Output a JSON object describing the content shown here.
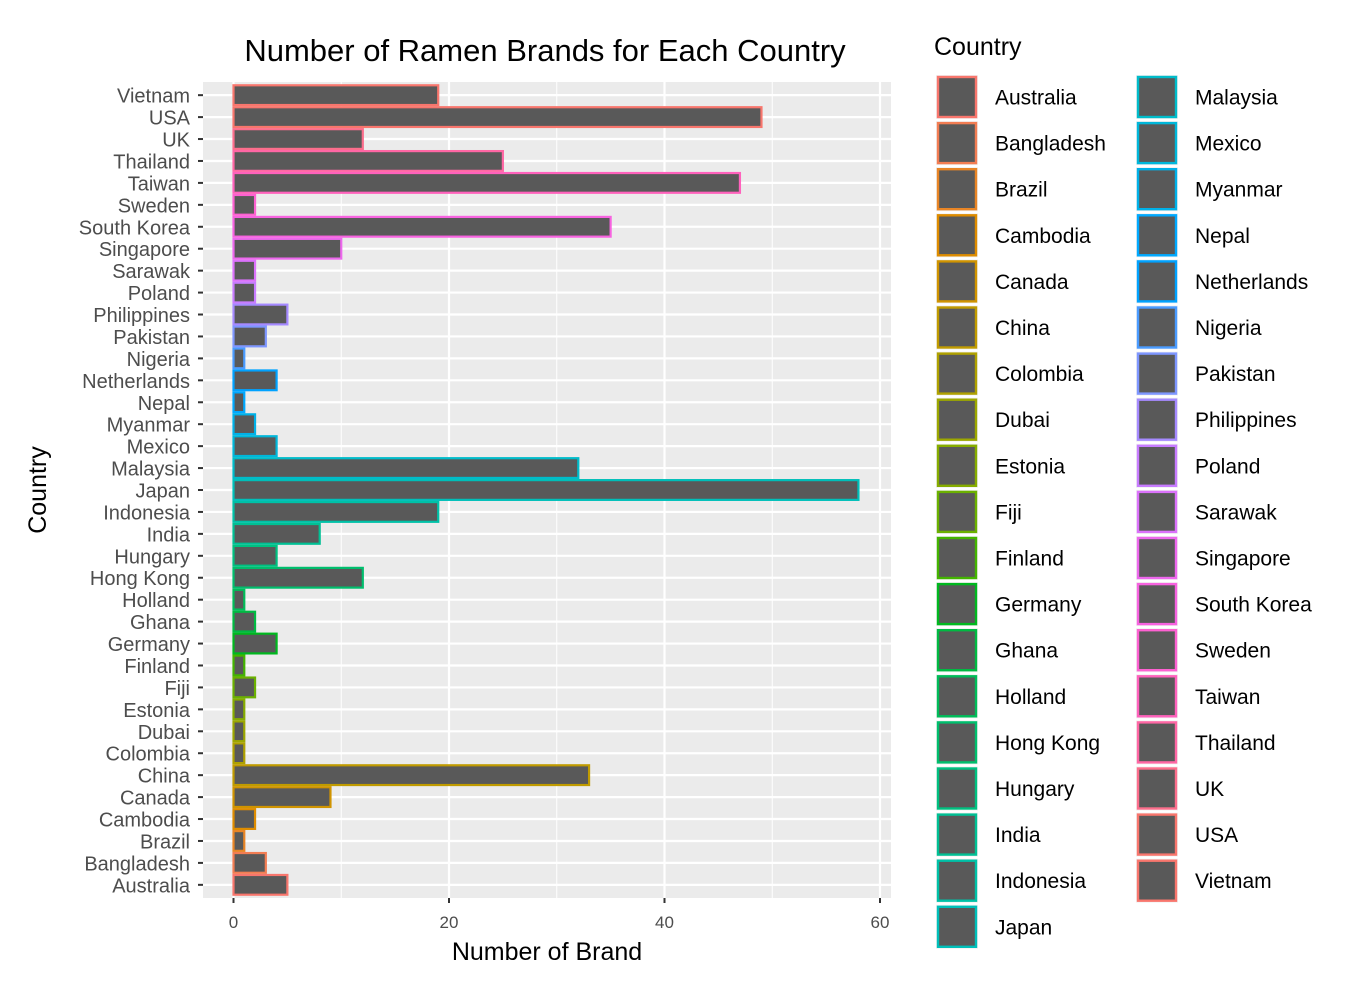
{
  "chart_data": {
    "type": "bar",
    "orientation": "horizontal",
    "title": "Number of Ramen Brands for Each Country",
    "xlabel": "Number of Brand",
    "ylabel": "Country",
    "xlim": [
      0,
      60
    ],
    "x_ticks": [
      0,
      20,
      40,
      60
    ],
    "grid": true,
    "legend": {
      "title": "Country",
      "placement": "right",
      "columns": 2
    },
    "bar_fill": "#595959",
    "panel_background": "#EBEBEB",
    "categories": [
      "Australia",
      "Bangladesh",
      "Brazil",
      "Cambodia",
      "Canada",
      "China",
      "Colombia",
      "Dubai",
      "Estonia",
      "Fiji",
      "Finland",
      "Germany",
      "Ghana",
      "Holland",
      "Hong Kong",
      "Hungary",
      "India",
      "Indonesia",
      "Japan",
      "Malaysia",
      "Mexico",
      "Myanmar",
      "Nepal",
      "Netherlands",
      "Nigeria",
      "Pakistan",
      "Philippines",
      "Poland",
      "Sarawak",
      "Singapore",
      "South Korea",
      "Sweden",
      "Taiwan",
      "Thailand",
      "UK",
      "USA",
      "Vietnam"
    ],
    "values": [
      5,
      3,
      1,
      2,
      9,
      33,
      1,
      1,
      1,
      2,
      1,
      4,
      2,
      1,
      12,
      4,
      8,
      19,
      58,
      32,
      4,
      2,
      1,
      4,
      1,
      3,
      5,
      2,
      2,
      10,
      35,
      2,
      47,
      25,
      12,
      49,
      19
    ],
    "colors": [
      "#F8766D",
      "#F27D53",
      "#E88526",
      "#DE8C00",
      "#D09400",
      "#C09B00",
      "#AFA100",
      "#9CA700",
      "#86AC00",
      "#6BB100",
      "#44B400",
      "#00B81F",
      "#00BA42",
      "#00BC59",
      "#00BE6D",
      "#00C080",
      "#00C094",
      "#00C1A7",
      "#00BFB9",
      "#00BCCA",
      "#00B7DA",
      "#00B1E8",
      "#00A9FF",
      "#00A2FF",
      "#4A9BFF",
      "#7E96FF",
      "#A58AFF",
      "#C77CFF",
      "#DB72FB",
      "#ED68ED",
      "#F763E0",
      "#FD61D1",
      "#FF62BC",
      "#FF67A4",
      "#FC6E8C",
      "#F8766D",
      "#F8766D"
    ]
  }
}
